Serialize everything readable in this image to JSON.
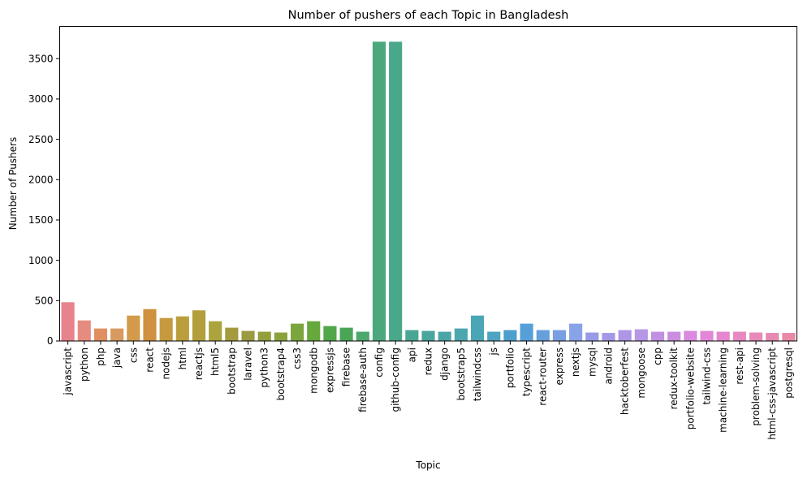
{
  "chart_data": {
    "type": "bar",
    "title": "Number of pushers of each Topic in Bangladesh",
    "xlabel": "Topic",
    "ylabel": "Number of Pushers",
    "ylim": [
      0,
      3900
    ],
    "yticks": [
      0,
      500,
      1000,
      1500,
      2000,
      2500,
      3000,
      3500
    ],
    "grid": false,
    "categories": [
      "javascript",
      "python",
      "php",
      "java",
      "css",
      "react",
      "nodejs",
      "html",
      "reactjs",
      "html5",
      "bootstrap",
      "laravel",
      "python3",
      "bootstrap4",
      "css3",
      "mongodb",
      "expressjs",
      "firebase",
      "firebase-auth",
      "config",
      "github-config",
      "api",
      "redux",
      "django",
      "bootstrap5",
      "tailwindcss",
      "js",
      "portfolio",
      "typescript",
      "react-router",
      "express",
      "nextjs",
      "mysql",
      "android",
      "hacktoberfest",
      "mongoose",
      "cpp",
      "redux-toolkit",
      "portfolio-website",
      "tailwind-css",
      "machine-learning",
      "rest-api",
      "problem-solving",
      "html-css-javascript",
      "postgresql"
    ],
    "values": [
      480,
      255,
      155,
      155,
      315,
      395,
      285,
      305,
      380,
      245,
      165,
      125,
      115,
      105,
      215,
      245,
      185,
      165,
      115,
      3710,
      3710,
      135,
      125,
      115,
      155,
      315,
      115,
      135,
      215,
      135,
      135,
      215,
      105,
      100,
      135,
      145,
      115,
      115,
      125,
      125,
      115,
      115,
      105,
      100,
      100
    ],
    "colors": [
      "#e8828c",
      "#e68b80",
      "#e08f61",
      "#d89a5e",
      "#d39a4a",
      "#cf9040",
      "#c59a3e",
      "#bb9e3c",
      "#b29f3b",
      "#aba43e",
      "#a39a3d",
      "#9c9a40",
      "#939e3c",
      "#8ba33c",
      "#7ba63d",
      "#67a83d",
      "#52a64a",
      "#4aa657",
      "#4ca86c",
      "#4aa87c",
      "#4aa88a",
      "#4aa694",
      "#4aa69d",
      "#4aa6a6",
      "#4ca6ae",
      "#4aa6b6",
      "#4da3c0",
      "#4e9fcb",
      "#56a0d8",
      "#669fdc",
      "#7a9ee2",
      "#88a3e8",
      "#979be6",
      "#a398e6",
      "#ae95e6",
      "#b796e6",
      "#c091e3",
      "#cb8de0",
      "#d98adf",
      "#e287d8",
      "#e686ce",
      "#e688c2",
      "#e78aba",
      "#e58ab0",
      "#e78aa6"
    ]
  }
}
